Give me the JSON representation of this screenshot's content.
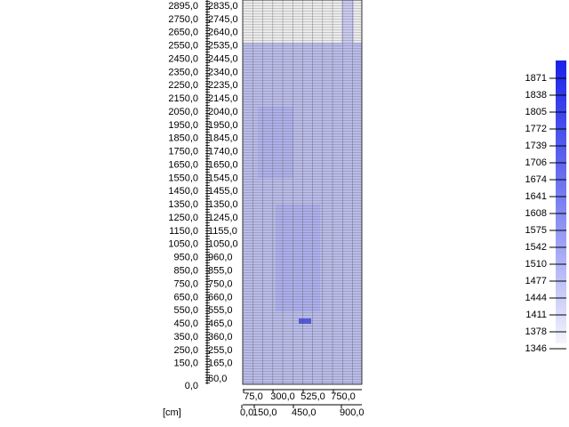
{
  "left_axis": {
    "labels": [
      "2895,0",
      "2750,0",
      "2650,0",
      "2550,0",
      "2450,0",
      "2350,0",
      "2250,0",
      "2150,0",
      "2050,0",
      "1950,0",
      "1850,0",
      "1750,0",
      "1650,0",
      "1550,0",
      "1450,0",
      "1350,0",
      "1250,0",
      "1150,0",
      "1050,0",
      "950,0",
      "850,0",
      "750,0",
      "650,0",
      "550,0",
      "450,0",
      "350,0",
      "250,0",
      "150,0",
      "0,0"
    ]
  },
  "right_axis": {
    "labels": [
      "2835,0",
      "2745,0",
      "2640,0",
      "2535,0",
      "2445,0",
      "2340,0",
      "2235,0",
      "2145,0",
      "2040,0",
      "1950,0",
      "1845,0",
      "1740,0",
      "1650,0",
      "1545,0",
      "1455,0",
      "1350,0",
      "1245,0",
      "1155,0",
      "1050,0",
      "960,0",
      "855,0",
      "750,0",
      "660,0",
      "555,0",
      "465,0",
      "360,0",
      "255,0",
      "165,0",
      "60,0"
    ]
  },
  "bottom_axis": {
    "upper_labels": [
      "75,0",
      "300,0",
      "525,0",
      "750,0"
    ],
    "lower_labels": [
      "0,0",
      "150,0",
      "450,0",
      "900,0"
    ]
  },
  "unit": "[cm]",
  "color_scale": {
    "labels": [
      "1871",
      "1838",
      "1805",
      "1772",
      "1739",
      "1706",
      "1674",
      "1641",
      "1608",
      "1575",
      "1542",
      "1510",
      "1477",
      "1444",
      "1411",
      "1378",
      "1346"
    ]
  }
}
